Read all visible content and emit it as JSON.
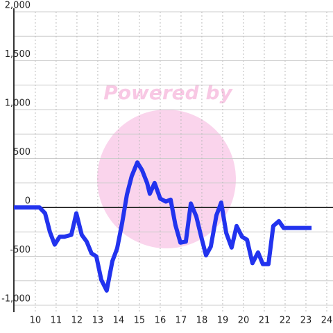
{
  "chart_data": {
    "type": "line",
    "watermark": "Powered by",
    "xlim": [
      8.97,
      24.3
    ],
    "xticks": [
      10,
      11,
      12,
      13,
      14,
      15,
      16,
      17,
      18,
      19,
      20,
      21,
      22,
      23,
      24
    ],
    "ylim": [
      -1000,
      2000
    ],
    "yticks": [
      {
        "value": -1000,
        "label": "-1,000"
      },
      -500,
      0,
      500,
      {
        "value": 1000,
        "label": "1,000"
      },
      {
        "value": 1500,
        "label": "1,500"
      },
      {
        "value": 2000,
        "label": "2,000"
      }
    ],
    "y_minor_ticks": [
      -750,
      -250,
      250,
      750,
      1250,
      1750
    ],
    "grid": true,
    "series": [
      {
        "color": "#2233ee",
        "x": [
          8.97,
          10.2,
          10.47,
          10.7,
          10.93,
          11.17,
          11.4,
          11.73,
          11.97,
          12.23,
          12.47,
          12.7,
          12.93,
          13.17,
          13.43,
          13.7,
          13.93,
          14.17,
          14.4,
          14.63,
          14.9,
          15.13,
          15.37,
          15.5,
          15.73,
          16.0,
          16.27,
          16.5,
          16.73,
          16.97,
          17.23,
          17.47,
          17.73,
          17.97,
          18.2,
          18.43,
          18.7,
          18.93,
          19.17,
          19.43,
          19.67,
          19.93,
          20.17,
          20.43,
          20.7,
          20.93,
          21.2,
          21.43,
          21.7,
          21.93,
          22.17,
          23.27
        ],
        "values": [
          0,
          0,
          -60,
          -250,
          -380,
          -300,
          -300,
          -280,
          -60,
          -280,
          -350,
          -470,
          -500,
          -740,
          -850,
          -550,
          -420,
          -160,
          130,
          320,
          460,
          380,
          250,
          140,
          250,
          90,
          60,
          80,
          -180,
          -360,
          -350,
          40,
          -90,
          -300,
          -490,
          -400,
          -80,
          50,
          -260,
          -410,
          -190,
          -300,
          -330,
          -570,
          -460,
          -580,
          -580,
          -190,
          -140,
          -210,
          -210,
          -210
        ]
      }
    ]
  }
}
